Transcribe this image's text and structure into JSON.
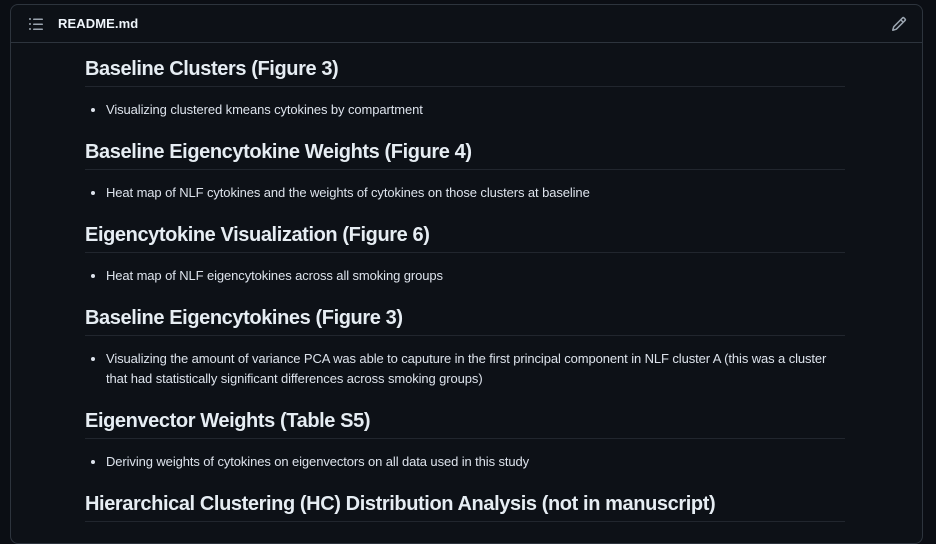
{
  "header": {
    "filename": "README.md",
    "outline_button_icon": "list-unordered-icon",
    "edit_button_icon": "pencil-icon"
  },
  "colors": {
    "page_background": "#0b0e14",
    "panel_background": "#0d1117",
    "panel_border": "#2d343d",
    "heading_text": "#e6edf3",
    "body_text": "#dde3ec"
  },
  "document": {
    "sections": [
      {
        "heading": "Baseline Clusters (Figure 3)",
        "bullets": [
          "Visualizing clustered kmeans cytokines by compartment"
        ]
      },
      {
        "heading": "Baseline Eigencytokine Weights (Figure 4)",
        "bullets": [
          "Heat map of NLF cytokines and the weights of cytokines on those clusters at baseline"
        ]
      },
      {
        "heading": "Eigencytokine Visualization (Figure 6)",
        "bullets": [
          "Heat map of NLF eigencytokines across all smoking groups"
        ]
      },
      {
        "heading": "Baseline Eigencytokines (Figure 3)",
        "bullets": [
          "Visualizing the amount of variance PCA was able to caputure in the first principal component in NLF cluster A (this was a cluster that had statistically significant differences across smoking groups)"
        ]
      },
      {
        "heading": "Eigenvector Weights (Table S5)",
        "bullets": [
          "Deriving weights of cytokines on eigenvectors on all data used in this study"
        ]
      },
      {
        "heading": "Hierarchical Clustering (HC) Distribution Analysis (not in manuscript)",
        "bullets": []
      }
    ]
  }
}
